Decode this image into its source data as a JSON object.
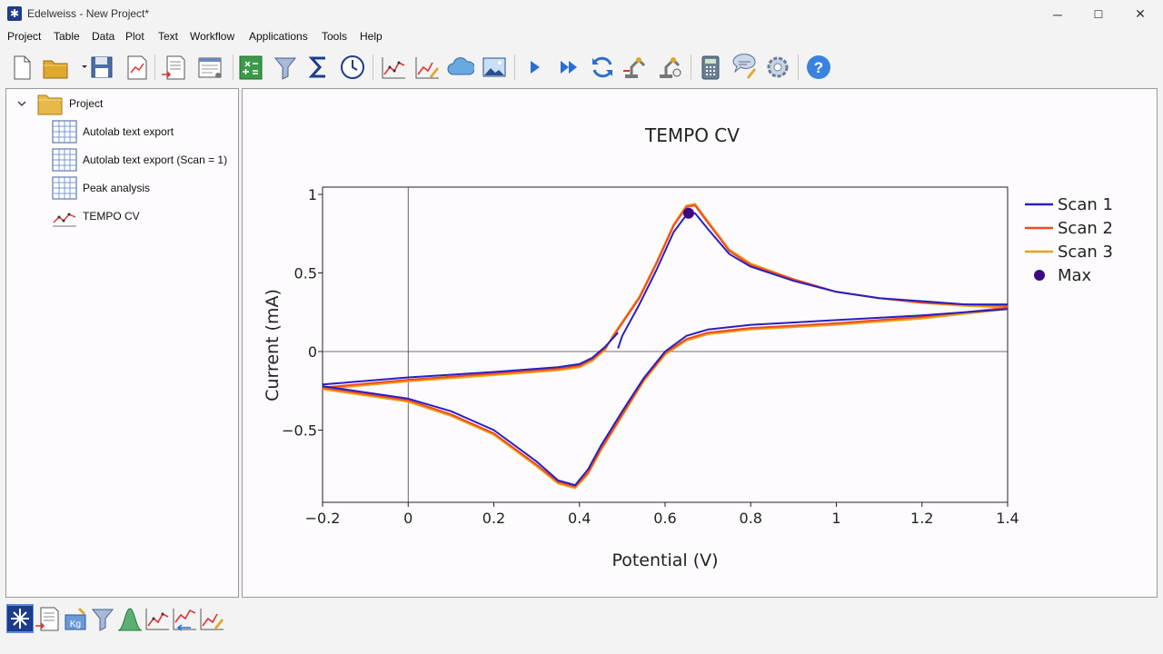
{
  "window": {
    "title": "Edelweiss - New Project*",
    "min": "─",
    "max": "☐",
    "close": "✕"
  },
  "menu": [
    "Project",
    "Table",
    "Data",
    "Plot",
    "Text",
    "Workflow",
    "Applications",
    "Tools",
    "Help"
  ],
  "tree": {
    "root": "Project",
    "items": [
      {
        "label": "Autolab text export",
        "icon": "table-icon"
      },
      {
        "label": "Autolab text export (Scan = 1)",
        "icon": "table-icon"
      },
      {
        "label": "Peak analysis",
        "icon": "table-icon"
      },
      {
        "label": "TEMPO CV",
        "icon": "plot-icon"
      }
    ]
  },
  "toolbar_icons": [
    "new-file-icon",
    "open-folder-icon",
    "save-icon",
    "export-plot-icon",
    "import-icon",
    "preview-icon",
    "add-column-icon",
    "filter-icon",
    "sum-icon",
    "clock-icon",
    "line-plot-icon",
    "edit-plot-icon",
    "cloud-icon",
    "image-icon",
    "run-icon",
    "run-all-icon",
    "refresh-icon",
    "robot-icon",
    "robot-settings-icon",
    "calculator-icon",
    "chat-icon",
    "settings-icon",
    "help-icon"
  ],
  "bottom_icons": [
    "edelweiss-icon",
    "import-data-icon",
    "kg-icon",
    "filter-icon",
    "peak-icon",
    "plot-icon",
    "plot-transform-icon",
    "plot-edit-icon"
  ],
  "chart_data": {
    "type": "line",
    "title": "TEMPO CV",
    "xlabel": "Potential (V)",
    "ylabel": "Current (mA)",
    "xlim": [
      -0.2,
      1.4
    ],
    "ylim": [
      -0.95,
      1.05
    ],
    "xticks": [
      "−0.2",
      "0",
      "0.2",
      "0.4",
      "0.6",
      "0.8",
      "1",
      "1.2",
      "1.4"
    ],
    "xtick_values": [
      -0.2,
      0,
      0.2,
      0.4,
      0.6,
      0.8,
      1,
      1.2,
      1.4
    ],
    "yticks": [
      "−0.5",
      "0",
      "0.5",
      "1"
    ],
    "ytick_values": [
      -0.5,
      0,
      0.5,
      1
    ],
    "legend_position": "right",
    "series": [
      {
        "name": "Scan 1",
        "color": "#2a1fbf",
        "forward": [
          [
            0.49,
            0.02
          ],
          [
            0.5,
            0.1
          ],
          [
            0.54,
            0.3
          ],
          [
            0.58,
            0.52
          ],
          [
            0.62,
            0.76
          ],
          [
            0.65,
            0.87
          ],
          [
            0.67,
            0.88
          ],
          [
            0.7,
            0.78
          ],
          [
            0.75,
            0.62
          ],
          [
            0.8,
            0.54
          ],
          [
            0.9,
            0.45
          ],
          [
            1.0,
            0.38
          ],
          [
            1.1,
            0.34
          ],
          [
            1.2,
            0.32
          ],
          [
            1.3,
            0.3
          ],
          [
            1.4,
            0.3
          ]
        ],
        "reverse": [
          [
            1.4,
            0.27
          ],
          [
            1.2,
            0.23
          ],
          [
            1.0,
            0.2
          ],
          [
            0.8,
            0.17
          ],
          [
            0.7,
            0.14
          ],
          [
            0.65,
            0.1
          ],
          [
            0.6,
            0.0
          ],
          [
            0.55,
            -0.17
          ],
          [
            0.5,
            -0.38
          ],
          [
            0.45,
            -0.6
          ],
          [
            0.42,
            -0.75
          ],
          [
            0.39,
            -0.85
          ],
          [
            0.35,
            -0.82
          ],
          [
            0.3,
            -0.7
          ],
          [
            0.2,
            -0.5
          ],
          [
            0.1,
            -0.38
          ],
          [
            0.0,
            -0.3
          ],
          [
            -0.1,
            -0.26
          ],
          [
            -0.2,
            -0.22
          ]
        ],
        "return": [
          [
            -0.2,
            -0.21
          ],
          [
            0.0,
            -0.165
          ],
          [
            0.2,
            -0.13
          ],
          [
            0.35,
            -0.1
          ],
          [
            0.4,
            -0.08
          ],
          [
            0.43,
            -0.04
          ],
          [
            0.46,
            0.03
          ],
          [
            0.49,
            0.12
          ]
        ]
      },
      {
        "name": "Scan 2",
        "color": "#ef4a22",
        "forward": [
          [
            0.48,
            0.1
          ],
          [
            0.54,
            0.34
          ],
          [
            0.58,
            0.56
          ],
          [
            0.62,
            0.8
          ],
          [
            0.65,
            0.92
          ],
          [
            0.67,
            0.93
          ],
          [
            0.7,
            0.82
          ],
          [
            0.75,
            0.64
          ],
          [
            0.8,
            0.55
          ],
          [
            0.9,
            0.46
          ],
          [
            1.0,
            0.38
          ],
          [
            1.1,
            0.34
          ],
          [
            1.2,
            0.31
          ],
          [
            1.3,
            0.3
          ],
          [
            1.4,
            0.29
          ]
        ],
        "reverse": [
          [
            1.4,
            0.28
          ],
          [
            1.2,
            0.22
          ],
          [
            1.0,
            0.18
          ],
          [
            0.8,
            0.15
          ],
          [
            0.7,
            0.12
          ],
          [
            0.65,
            0.08
          ],
          [
            0.6,
            -0.01
          ],
          [
            0.55,
            -0.18
          ],
          [
            0.5,
            -0.4
          ],
          [
            0.45,
            -0.62
          ],
          [
            0.42,
            -0.77
          ],
          [
            0.39,
            -0.86
          ],
          [
            0.35,
            -0.83
          ],
          [
            0.3,
            -0.72
          ],
          [
            0.2,
            -0.52
          ],
          [
            0.1,
            -0.4
          ],
          [
            0.0,
            -0.31
          ],
          [
            -0.1,
            -0.27
          ],
          [
            -0.2,
            -0.23
          ]
        ],
        "return": [
          [
            -0.2,
            -0.23
          ],
          [
            0.0,
            -0.18
          ],
          [
            0.2,
            -0.14
          ],
          [
            0.35,
            -0.11
          ],
          [
            0.4,
            -0.09
          ],
          [
            0.43,
            -0.05
          ],
          [
            0.46,
            0.02
          ],
          [
            0.48,
            0.1
          ]
        ]
      },
      {
        "name": "Scan 3",
        "color": "#e8a31a",
        "forward": [
          [
            0.48,
            0.11
          ],
          [
            0.54,
            0.35
          ],
          [
            0.58,
            0.57
          ],
          [
            0.62,
            0.81
          ],
          [
            0.65,
            0.93
          ],
          [
            0.67,
            0.94
          ],
          [
            0.7,
            0.83
          ],
          [
            0.75,
            0.65
          ],
          [
            0.8,
            0.56
          ],
          [
            0.9,
            0.46
          ],
          [
            1.0,
            0.38
          ],
          [
            1.1,
            0.34
          ],
          [
            1.2,
            0.31
          ],
          [
            1.3,
            0.29
          ],
          [
            1.4,
            0.28
          ]
        ],
        "reverse": [
          [
            1.4,
            0.27
          ],
          [
            1.2,
            0.21
          ],
          [
            1.0,
            0.17
          ],
          [
            0.8,
            0.14
          ],
          [
            0.7,
            0.11
          ],
          [
            0.65,
            0.07
          ],
          [
            0.6,
            -0.02
          ],
          [
            0.55,
            -0.19
          ],
          [
            0.5,
            -0.41
          ],
          [
            0.45,
            -0.63
          ],
          [
            0.42,
            -0.78
          ],
          [
            0.39,
            -0.87
          ],
          [
            0.35,
            -0.84
          ],
          [
            0.3,
            -0.73
          ],
          [
            0.2,
            -0.53
          ],
          [
            0.1,
            -0.41
          ],
          [
            0.0,
            -0.32
          ],
          [
            -0.1,
            -0.28
          ],
          [
            -0.2,
            -0.24
          ]
        ],
        "return": [
          [
            -0.2,
            -0.24
          ],
          [
            0.0,
            -0.19
          ],
          [
            0.2,
            -0.15
          ],
          [
            0.35,
            -0.12
          ],
          [
            0.4,
            -0.1
          ],
          [
            0.43,
            -0.06
          ],
          [
            0.46,
            0.01
          ],
          [
            0.48,
            0.11
          ]
        ]
      },
      {
        "name": "Max",
        "color": "#3b0a82",
        "type": "scatter",
        "points": [
          [
            0.655,
            0.88
          ]
        ]
      }
    ]
  }
}
